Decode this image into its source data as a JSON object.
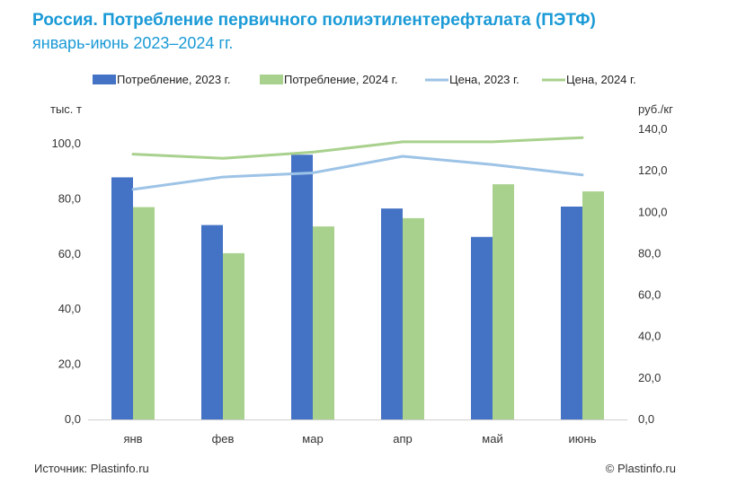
{
  "header": {
    "title": "Россия. Потребление первичного полиэтилентерефталата (ПЭТФ)",
    "subtitle": "январь-июнь 2023–2024 гг."
  },
  "footer": {
    "source": "Источник: Plastinfo.ru",
    "copyright": "© Plastinfo.ru"
  },
  "colors": {
    "title": "#1a9ad6",
    "bar_2023": "#4472c4",
    "bar_2024": "#a9d18e",
    "line_2023": "#9dc3e6",
    "line_2024": "#a9d18e"
  },
  "chart_data": {
    "type": "bar",
    "title": "Россия. Потребление первичного полиэтилентерефталата (ПЭТФ)",
    "subtitle": "январь-июнь 2023–2024 гг.",
    "categories": [
      "янв",
      "фев",
      "мар",
      "апр",
      "май",
      "июнь"
    ],
    "y_left": {
      "unit": "тыс. т",
      "ylim": [
        0,
        100
      ],
      "ticks": [
        "0,0",
        "20,0",
        "40,0",
        "60,0",
        "80,0",
        "100,0"
      ],
      "tick_values": [
        0,
        20,
        40,
        60,
        80,
        100
      ]
    },
    "y_right": {
      "unit": "руб./кг",
      "ylim": [
        0,
        140
      ],
      "ticks": [
        "0,0",
        "20,0",
        "40,0",
        "60,0",
        "80,0",
        "100,0",
        "120,0",
        "140,0"
      ],
      "tick_values": [
        0,
        20,
        40,
        60,
        80,
        100,
        120,
        140
      ]
    },
    "grid": false,
    "legend_position": "top",
    "series": [
      {
        "name": "Потребление, 2023 г.",
        "kind": "bar",
        "axis": "left",
        "color": "#4472c4",
        "values": [
          87.8,
          70.5,
          96.0,
          76.5,
          66.2,
          77.2
        ]
      },
      {
        "name": "Потребление, 2024 г.",
        "kind": "bar",
        "axis": "left",
        "color": "#a9d18e",
        "values": [
          77.0,
          60.3,
          70.0,
          73.0,
          85.3,
          82.7
        ]
      },
      {
        "name": "Цена, 2023 г.",
        "kind": "line",
        "axis": "right",
        "color": "#9dc3e6",
        "values": [
          111,
          117,
          119,
          127,
          123,
          118
        ]
      },
      {
        "name": "Цена, 2024 г.",
        "kind": "line",
        "axis": "right",
        "color": "#a9d18e",
        "values": [
          128,
          126,
          129,
          134,
          134,
          136
        ]
      }
    ]
  }
}
